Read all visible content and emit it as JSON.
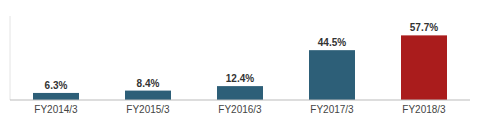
{
  "chart_data": {
    "type": "bar",
    "categories": [
      "FY2014/3",
      "FY2015/3",
      "FY2016/3",
      "FY2017/3",
      "FY2018/3"
    ],
    "values": [
      6.3,
      8.4,
      12.4,
      44.5,
      57.7
    ],
    "value_labels": [
      "6.3%",
      "8.4%",
      "12.4%",
      "44.5%",
      "57.7%"
    ],
    "colors": [
      "#2d5f78",
      "#2d5f78",
      "#2d5f78",
      "#2d5f78",
      "#aa1c1c"
    ],
    "ylim": [
      0,
      75
    ],
    "data_labels": true,
    "tick_labels": "x",
    "grid": false
  }
}
